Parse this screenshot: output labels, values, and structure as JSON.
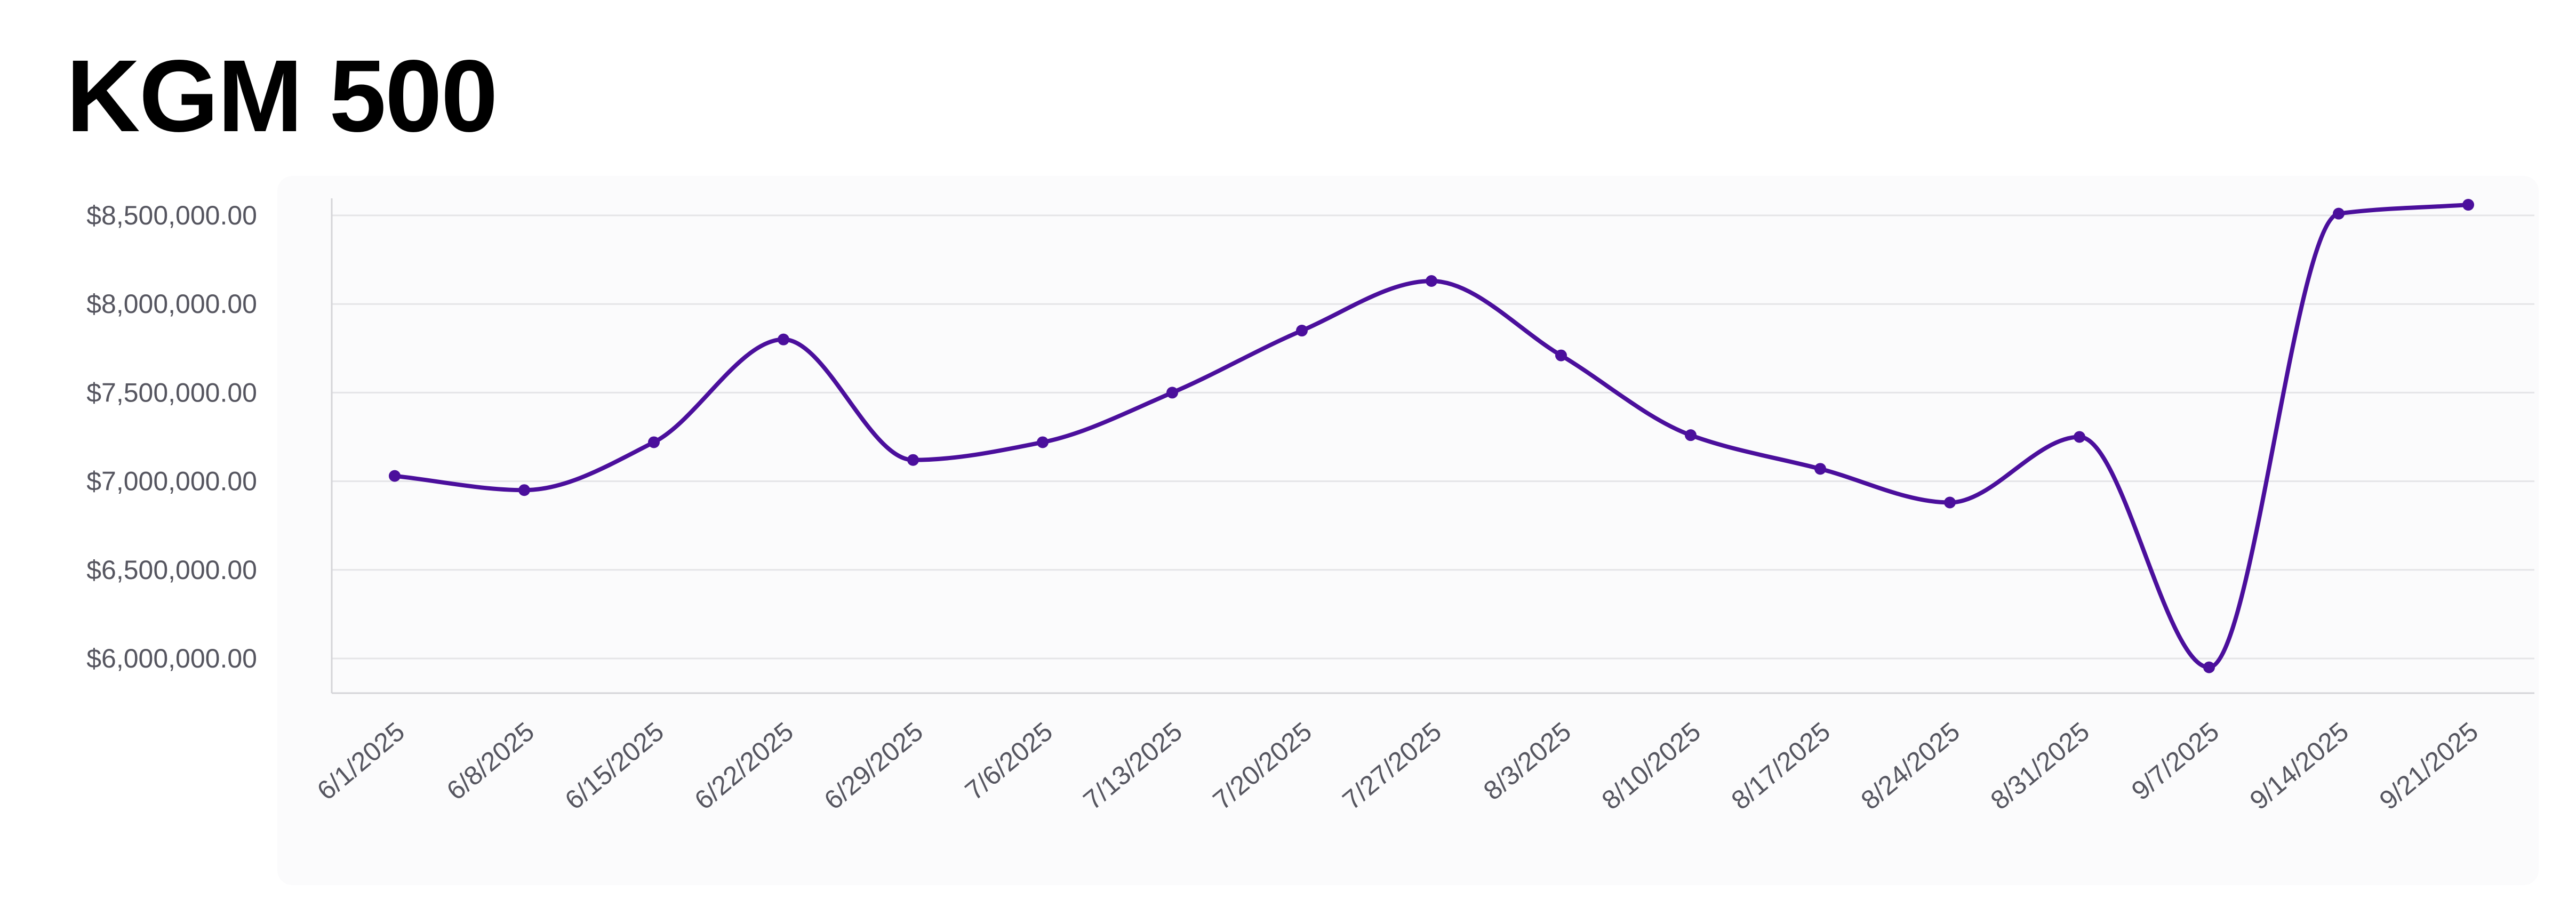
{
  "title": "KGM 500",
  "colors": {
    "line": "#4b0f9c",
    "grid": "#e4e4e7",
    "axis": "#d4d4d8",
    "tick_text": "#55555f",
    "card_background": "#fbfbfc"
  },
  "chart_data": {
    "type": "line",
    "title": "KGM 500",
    "xlabel": "",
    "ylabel": "",
    "curve": "smooth",
    "grid": true,
    "legend": "none",
    "ylim": [
      5800000,
      8600000
    ],
    "yticks": [
      6000000,
      6500000,
      7000000,
      7500000,
      8000000,
      8500000
    ],
    "ytick_labels": [
      "$6,000,000.00",
      "$6,500,000.00",
      "$7,000,000.00",
      "$7,500,000.00",
      "$8,000,000.00",
      "$8,500,000.00"
    ],
    "categories": [
      "6/1/2025",
      "6/8/2025",
      "6/15/2025",
      "6/22/2025",
      "6/29/2025",
      "7/6/2025",
      "7/13/2025",
      "7/20/2025",
      "7/27/2025",
      "8/3/2025",
      "8/10/2025",
      "8/17/2025",
      "8/24/2025",
      "8/31/2025",
      "9/7/2025",
      "9/14/2025",
      "9/21/2025"
    ],
    "series": [
      {
        "values": [
          7030000,
          6950000,
          7220000,
          7800000,
          7120000,
          7220000,
          7500000,
          7850000,
          8130000,
          7710000,
          7260000,
          7070000,
          6880000,
          7250000,
          5950000,
          8510000,
          8560000
        ]
      }
    ]
  }
}
